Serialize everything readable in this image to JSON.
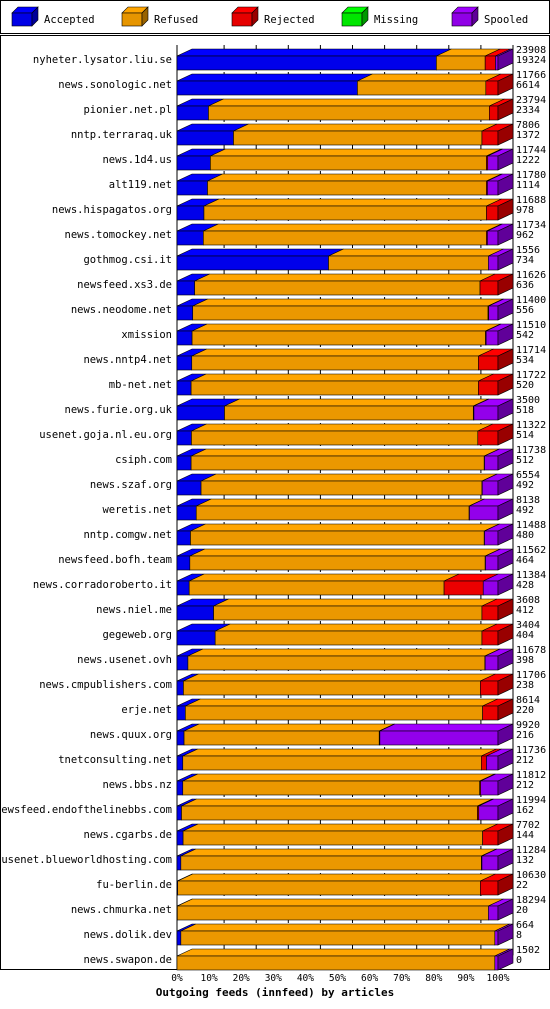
{
  "chart_data": {
    "type": "bar",
    "orientation": "horizontal",
    "stacked": true,
    "percent_stacked": true,
    "three_d": true,
    "title": "",
    "xlabel": "Outgoing feeds (innfeed) by articles",
    "ylabel": "",
    "xlim": [
      0,
      100
    ],
    "x_ticks": [
      "0%",
      "10%",
      "20%",
      "30%",
      "40%",
      "50%",
      "60%",
      "70%",
      "80%",
      "90%",
      "100%"
    ],
    "grid": "vertical dashed",
    "legend_position": "top",
    "legend": [
      {
        "name": "Accepted",
        "color": "#0000ff"
      },
      {
        "name": "Refused",
        "color": "#ffa500"
      },
      {
        "name": "Rejected",
        "color": "#ff0000"
      },
      {
        "name": "Missing",
        "color": "#00ff00"
      },
      {
        "name": "Spooled",
        "color": "#a000ff"
      }
    ],
    "categories": [
      "nyheter.lysator.liu.se",
      "news.sonologic.net",
      "pionier.net.pl",
      "nntp.terraraq.uk",
      "news.1d4.us",
      "alt119.net",
      "news.hispagatos.org",
      "news.tomockey.net",
      "gothmog.csi.it",
      "newsfeed.xs3.de",
      "news.neodome.net",
      "xmission",
      "news.nntp4.net",
      "mb-net.net",
      "news.furie.org.uk",
      "usenet.goja.nl.eu.org",
      "csiph.com",
      "news.szaf.org",
      "weretis.net",
      "nntp.comgw.net",
      "newsfeed.bofh.team",
      "news.corradoroberto.it",
      "news.niel.me",
      "gegeweb.org",
      "news.usenet.ovh",
      "news.cmpublishers.com",
      "erje.net",
      "news.quux.org",
      "tnetconsulting.net",
      "news.bbs.nz",
      "newsfeed.endofthelinebbs.com",
      "news.cgarbs.de",
      "usenet.blueworldhosting.com",
      "fu-berlin.de",
      "news.chmurka.net",
      "news.dolik.dev",
      "news.swapon.de"
    ],
    "total_offered": [
      23908,
      11766,
      23794,
      7806,
      11744,
      11780,
      11688,
      11734,
      1556,
      11626,
      11400,
      11510,
      11714,
      11722,
      3500,
      11322,
      11738,
      6554,
      8138,
      11488,
      11562,
      11384,
      3608,
      3404,
      11678,
      11706,
      8614,
      9920,
      11736,
      11812,
      11994,
      7702,
      11284,
      10630,
      18294,
      664,
      1502
    ],
    "accepted": [
      19324,
      6614,
      2334,
      1372,
      1222,
      1114,
      978,
      962,
      734,
      636,
      556,
      542,
      534,
      520,
      518,
      514,
      512,
      492,
      492,
      480,
      464,
      428,
      412,
      404,
      398,
      238,
      220,
      216,
      212,
      212,
      162,
      144,
      132,
      22,
      20,
      8,
      0
    ],
    "series": [
      {
        "name": "Accepted",
        "values": [
          80.8,
          56.2,
          9.8,
          17.6,
          10.4,
          9.5,
          8.4,
          8.2,
          47.2,
          5.5,
          4.9,
          4.7,
          4.6,
          4.4,
          14.8,
          4.5,
          4.4,
          7.5,
          6.0,
          4.2,
          4.0,
          3.8,
          11.4,
          11.9,
          3.4,
          2.0,
          2.6,
          2.2,
          1.8,
          1.8,
          1.4,
          1.9,
          1.2,
          0.2,
          0.1,
          1.2,
          0.0
        ]
      },
      {
        "name": "Refused",
        "values": [
          15.2,
          40.0,
          87.5,
          77.4,
          86.0,
          86.9,
          88.0,
          88.2,
          49.8,
          88.9,
          92.0,
          91.4,
          89.3,
          89.5,
          77.5,
          89.2,
          91.3,
          87.5,
          85.0,
          91.5,
          92.0,
          79.4,
          83.6,
          83.1,
          92.5,
          92.5,
          92.6,
          60.8,
          93.0,
          92.5,
          92.2,
          93.3,
          93.6,
          94.3,
          96.9,
          97.8,
          99.0
        ]
      },
      {
        "name": "Rejected",
        "values": [
          3.2,
          3.8,
          2.7,
          5.0,
          0.4,
          0.3,
          3.6,
          0.3,
          0.0,
          5.6,
          0.2,
          0.2,
          6.1,
          6.1,
          0.2,
          6.3,
          0.1,
          0.1,
          0.1,
          0.1,
          0.1,
          12.2,
          5.0,
          5.0,
          0.1,
          5.5,
          4.8,
          0.2,
          1.6,
          0.3,
          0.4,
          4.8,
          0.2,
          5.5,
          0.0,
          0.0,
          0.0
        ]
      },
      {
        "name": "Missing",
        "values": [
          0,
          0,
          0,
          0,
          0,
          0,
          0,
          0,
          0,
          0,
          0,
          0,
          0,
          0,
          0,
          0,
          0,
          0,
          0,
          0,
          0,
          0,
          0,
          0,
          0,
          0,
          0,
          0,
          0,
          0,
          0,
          0,
          0,
          0,
          0,
          0,
          0
        ]
      },
      {
        "name": "Spooled",
        "values": [
          0.8,
          0.0,
          0.0,
          0.0,
          3.2,
          3.3,
          0.0,
          3.3,
          3.0,
          0.0,
          2.9,
          3.7,
          0.0,
          0.0,
          7.5,
          0.0,
          4.2,
          4.9,
          8.9,
          4.2,
          3.9,
          4.6,
          0.0,
          0.0,
          4.0,
          0.0,
          0.0,
          36.8,
          3.6,
          5.4,
          6.0,
          0.0,
          5.0,
          0.0,
          3.0,
          1.0,
          1.0
        ]
      }
    ]
  }
}
